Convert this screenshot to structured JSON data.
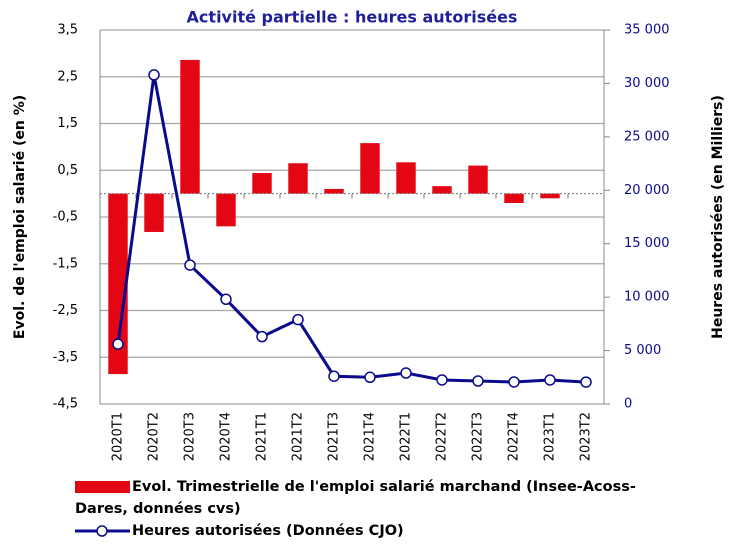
{
  "chart_data": {
    "type": "bar_line",
    "title": "Activité partielle : heures autorisées",
    "y_label": "Evol. de l'emploi salarié (en %)",
    "y2_label": "Heures autorisées (en Milliers)",
    "categories": [
      "2020T1",
      "2020T2",
      "2020T3",
      "2020T4",
      "2021T1",
      "2021T2",
      "2021T3",
      "2021T4",
      "2022T1",
      "2022T2",
      "2022T3",
      "2022T4",
      "2023T1",
      "2023T2"
    ],
    "series": [
      {
        "name": "Evol. Trimestrielle de l'emploi salarié marchand (Insee-Acoss-Dares, données cvs)",
        "type": "bar",
        "color": "#e30613",
        "values": [
          -3.86,
          -0.82,
          2.86,
          -0.7,
          0.44,
          0.65,
          0.1,
          1.08,
          0.67,
          0.16,
          0.6,
          -0.2,
          -0.1,
          0
        ]
      },
      {
        "name": "Heures autorisées (Données CJO)",
        "type": "line",
        "axis": "y2",
        "color": "#0a0a8c",
        "values": [
          5600,
          30800,
          13000,
          9800,
          6300,
          7900,
          2600,
          2500,
          2900,
          2250,
          2150,
          2060,
          2250,
          2050
        ]
      }
    ],
    "ylim": [
      -4.5,
      3.5
    ],
    "yticks": [
      {
        "value": -4.5,
        "label": "-4,5"
      },
      {
        "value": -3.5,
        "label": "-3,5"
      },
      {
        "value": -2.5,
        "label": "-2,5"
      },
      {
        "value": -1.5,
        "label": "-1,5"
      },
      {
        "value": -0.5,
        "label": "-0,5"
      },
      {
        "value": 0.5,
        "label": "0,5"
      },
      {
        "value": 1.5,
        "label": "1,5"
      },
      {
        "value": 2.5,
        "label": "2,5"
      },
      {
        "value": 3.5,
        "label": "3,5"
      }
    ],
    "y2lim": [
      0,
      35000
    ],
    "y2ticks": [
      0,
      {
        "value": 5000,
        "label": "5 000"
      },
      {
        "value": 10000,
        "label": "10 000"
      },
      {
        "value": 15000,
        "label": "15 000"
      },
      {
        "value": 20000,
        "label": "20 000"
      },
      {
        "value": 25000,
        "label": "25 000"
      },
      {
        "value": 30000,
        "label": "30 000"
      },
      {
        "value": 35000,
        "label": "35 000"
      }
    ],
    "grid": true
  }
}
